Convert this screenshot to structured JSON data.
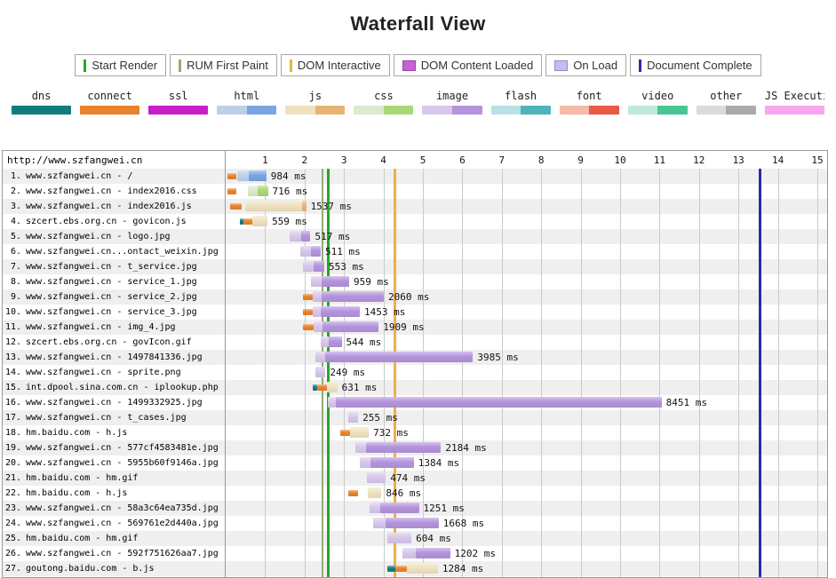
{
  "title": "Waterfall View",
  "event_legend": [
    {
      "label": "Start Render",
      "color": "#27a727",
      "shape": "line"
    },
    {
      "label": "RUM First Paint",
      "color": "#93ac74",
      "shape": "line"
    },
    {
      "label": "DOM Interactive",
      "color": "#e3b93c",
      "shape": "line"
    },
    {
      "label": "DOM Content Loaded",
      "color": "#ca5fd6",
      "shape": "band"
    },
    {
      "label": "On Load",
      "color": "#c3bdf5",
      "shape": "band"
    },
    {
      "label": "Document Complete",
      "color": "#2a2aad",
      "shape": "line"
    }
  ],
  "phase_legend": [
    {
      "label": "dns",
      "solid": "#127c7c"
    },
    {
      "label": "connect",
      "solid": "#e8832b"
    },
    {
      "label": "ssl",
      "solid": "#c81ec8"
    },
    {
      "label": "html",
      "light": "#bdd0ea",
      "dark": "#79a5e0"
    },
    {
      "label": "js",
      "light": "#efe2c0",
      "dark": "#e9b377"
    },
    {
      "label": "css",
      "light": "#dcead0",
      "dark": "#a8d878"
    },
    {
      "label": "image",
      "light": "#d7c7eb",
      "dark": "#b494dc"
    },
    {
      "label": "flash",
      "light": "#b9e1e3",
      "dark": "#4fb3ba"
    },
    {
      "label": "font",
      "light": "#f5baa9",
      "dark": "#e85a45"
    },
    {
      "label": "video",
      "light": "#c0e9d8",
      "dark": "#49c593"
    },
    {
      "label": "other",
      "light": "#dbdbdb",
      "dark": "#aaaaaa"
    },
    {
      "label": "JS Execution",
      "solid": "#f9a6ee"
    }
  ],
  "palette": {
    "dns": "#127c7c",
    "connect": "#e8832b",
    "ssl": "#c81ec8",
    "html_light": "#bdd0ea",
    "html_dark": "#79a5e0",
    "js_light": "#efe2c0",
    "js_dark": "#e9b377",
    "css_light": "#dcead0",
    "css_dark": "#a8d878",
    "image_light": "#d7c7eb",
    "image_dark": "#b494dc",
    "other_light": "#dbdbdb",
    "other_dark": "#aaaaaa"
  },
  "chart_data": {
    "type": "waterfall",
    "title": "Waterfall View",
    "page_url": "http://www.szfangwei.cn",
    "x_axis": {
      "unit": "seconds",
      "ticks": [
        1,
        2,
        3,
        4,
        5,
        6,
        7,
        8,
        9,
        10,
        11,
        12,
        13,
        14,
        15
      ],
      "max": 15.3
    },
    "markers": [
      {
        "name": "RUM First Paint",
        "time_s": 2.46,
        "color": "#93ac74",
        "width": 2
      },
      {
        "name": "Start Render",
        "time_s": 2.6,
        "color": "#27a727",
        "width": 3
      },
      {
        "name": "DOM Interactive",
        "time_s": 4.3,
        "color": "#efae4e",
        "width": 3
      },
      {
        "name": "Document Complete",
        "time_s": 13.55,
        "color": "#2a2ab0",
        "width": 3
      }
    ],
    "requests": [
      {
        "n": "1.",
        "label": "www.szfangwei.cn - /",
        "mime": "html",
        "duration": "984 ms",
        "segments": [
          [
            "connect",
            0.05,
            0.28
          ],
          [
            "html_light",
            0.3,
            0.58
          ],
          [
            "html_dark",
            0.58,
            1.03
          ]
        ]
      },
      {
        "n": "2.",
        "label": "www.szfangwei.cn - index2016.css",
        "mime": "css",
        "duration": "716 ms",
        "segments": [
          [
            "connect",
            0.05,
            0.26
          ],
          [
            "css_light",
            0.56,
            0.8
          ],
          [
            "css_dark",
            0.8,
            1.07
          ]
        ]
      },
      {
        "n": "3.",
        "label": "www.szfangwei.cn - index2016.js",
        "mime": "js",
        "duration": "1537 ms",
        "segments": [
          [
            "connect",
            0.12,
            0.4
          ],
          [
            "js_light",
            0.5,
            1.93
          ],
          [
            "js_dark",
            1.93,
            2.04
          ]
        ]
      },
      {
        "n": "4.",
        "label": "szcert.ebs.org.cn - govicon.js",
        "mime": "js",
        "duration": "559 ms",
        "segments": [
          [
            "dns",
            0.37,
            0.45
          ],
          [
            "connect",
            0.45,
            0.67
          ],
          [
            "js_light",
            0.67,
            1.06
          ]
        ]
      },
      {
        "n": "5.",
        "label": "www.szfangwei.cn - logo.jpg",
        "mime": "image",
        "duration": "517 ms",
        "segments": [
          [
            "image_light",
            1.63,
            1.91
          ],
          [
            "image_dark",
            1.91,
            2.15
          ]
        ]
      },
      {
        "n": "6.",
        "label": "www.szfangwei.cn...ontact_weixin.jpg",
        "mime": "image",
        "duration": "511 ms",
        "segments": [
          [
            "image_light",
            1.9,
            2.17
          ],
          [
            "image_dark",
            2.17,
            2.41
          ]
        ]
      },
      {
        "n": "7.",
        "label": "www.szfangwei.cn - t_service.jpg",
        "mime": "image",
        "duration": "553 ms",
        "segments": [
          [
            "image_light",
            1.95,
            2.22
          ],
          [
            "image_dark",
            2.22,
            2.5
          ]
        ]
      },
      {
        "n": "8.",
        "label": "www.szfangwei.cn - service_1.jpg",
        "mime": "image",
        "duration": "959 ms",
        "segments": [
          [
            "image_light",
            2.17,
            2.43
          ],
          [
            "image_dark",
            2.43,
            3.13
          ]
        ]
      },
      {
        "n": "9.",
        "label": "www.szfangwei.cn - service_2.jpg",
        "mime": "image",
        "duration": "2060 ms",
        "segments": [
          [
            "connect",
            1.95,
            2.2
          ],
          [
            "image_light",
            2.2,
            2.43
          ],
          [
            "image_dark",
            2.43,
            4.01
          ]
        ]
      },
      {
        "n": "10.",
        "label": "www.szfangwei.cn - service_3.jpg",
        "mime": "image",
        "duration": "1453 ms",
        "segments": [
          [
            "connect",
            1.95,
            2.2
          ],
          [
            "image_light",
            2.2,
            2.42
          ],
          [
            "image_dark",
            2.42,
            3.4
          ]
        ]
      },
      {
        "n": "11.",
        "label": "www.szfangwei.cn - img_4.jpg",
        "mime": "image",
        "duration": "1909 ms",
        "segments": [
          [
            "connect",
            1.97,
            2.23
          ],
          [
            "image_light",
            2.23,
            2.46
          ],
          [
            "image_dark",
            2.46,
            3.88
          ]
        ]
      },
      {
        "n": "12.",
        "label": "szcert.ebs.org.cn - govIcon.gif",
        "mime": "image",
        "duration": "544 ms",
        "segments": [
          [
            "image_light",
            2.4,
            2.61
          ],
          [
            "image_dark",
            2.61,
            2.94
          ]
        ]
      },
      {
        "n": "13.",
        "label": "www.szfangwei.cn - 1497841336.jpg",
        "mime": "image",
        "duration": "3985 ms",
        "segments": [
          [
            "image_light",
            2.28,
            2.53
          ],
          [
            "image_dark",
            2.53,
            6.27
          ]
        ]
      },
      {
        "n": "14.",
        "label": "www.szfangwei.cn - sprite.png",
        "mime": "image",
        "duration": "249 ms",
        "segments": [
          [
            "image_light",
            2.28,
            2.53
          ]
        ]
      },
      {
        "n": "15.",
        "label": "int.dpool.sina.com.cn - iplookup.php",
        "mime": "js",
        "duration": "631 ms",
        "segments": [
          [
            "dns",
            2.2,
            2.33
          ],
          [
            "connect",
            2.33,
            2.56
          ],
          [
            "js_light",
            2.56,
            2.83
          ]
        ]
      },
      {
        "n": "16.",
        "label": "www.szfangwei.cn - 1499332925.jpg",
        "mime": "image",
        "duration": "8451 ms",
        "segments": [
          [
            "image_light",
            2.6,
            2.79
          ],
          [
            "image_dark",
            2.79,
            11.05
          ]
        ]
      },
      {
        "n": "17.",
        "label": "www.szfangwei.cn - t_cases.jpg",
        "mime": "image",
        "duration": "255 ms",
        "segments": [
          [
            "image_light",
            3.1,
            3.36
          ]
        ]
      },
      {
        "n": "18.",
        "label": "hm.baidu.com - h.js",
        "mime": "js",
        "duration": "732 ms",
        "segments": [
          [
            "connect",
            2.9,
            3.15
          ],
          [
            "js_light",
            3.15,
            3.63
          ]
        ]
      },
      {
        "n": "19.",
        "label": "www.szfangwei.cn - 577cf4583481e.jpg",
        "mime": "image",
        "duration": "2184 ms",
        "segments": [
          [
            "image_light",
            3.28,
            3.56
          ],
          [
            "image_dark",
            3.56,
            5.46
          ]
        ]
      },
      {
        "n": "20.",
        "label": "www.szfangwei.cn - 5955b60f9146a.jpg",
        "mime": "image",
        "duration": "1384 ms",
        "segments": [
          [
            "image_light",
            3.39,
            3.66
          ],
          [
            "image_dark",
            3.66,
            4.77
          ]
        ]
      },
      {
        "n": "21.",
        "label": "hm.baidu.com - hm.gif",
        "mime": "image",
        "duration": "474 ms",
        "segments": [
          [
            "image_light",
            3.59,
            4.06
          ]
        ]
      },
      {
        "n": "22.",
        "label": "hm.baidu.com - h.js",
        "mime": "js",
        "duration": "846 ms",
        "segments": [
          [
            "connect",
            3.1,
            3.36
          ],
          [
            "js_light",
            3.6,
            3.95
          ]
        ]
      },
      {
        "n": "23.",
        "label": "www.szfangwei.cn - 58a3c64ea735d.jpg",
        "mime": "image",
        "duration": "1251 ms",
        "segments": [
          [
            "image_light",
            3.65,
            3.93
          ],
          [
            "image_dark",
            3.93,
            4.9
          ]
        ]
      },
      {
        "n": "24.",
        "label": "www.szfangwei.cn - 569761e2d440a.jpg",
        "mime": "image",
        "duration": "1668 ms",
        "segments": [
          [
            "image_light",
            3.73,
            4.06
          ],
          [
            "image_dark",
            4.06,
            5.4
          ]
        ]
      },
      {
        "n": "25.",
        "label": "hm.baidu.com - hm.gif",
        "mime": "image",
        "duration": "604 ms",
        "segments": [
          [
            "image_light",
            4.11,
            4.71
          ]
        ]
      },
      {
        "n": "26.",
        "label": "www.szfangwei.cn - 592f751626aa7.jpg",
        "mime": "image",
        "duration": "1202 ms",
        "segments": [
          [
            "image_light",
            4.49,
            4.81
          ],
          [
            "image_dark",
            4.81,
            5.69
          ]
        ]
      },
      {
        "n": "27.",
        "label": "goutong.baidu.com - b.js",
        "mime": "js",
        "duration": "1284 ms",
        "segments": [
          [
            "dns",
            4.09,
            4.31
          ],
          [
            "connect",
            4.31,
            4.6
          ],
          [
            "js_light",
            4.6,
            5.38
          ]
        ]
      }
    ]
  }
}
